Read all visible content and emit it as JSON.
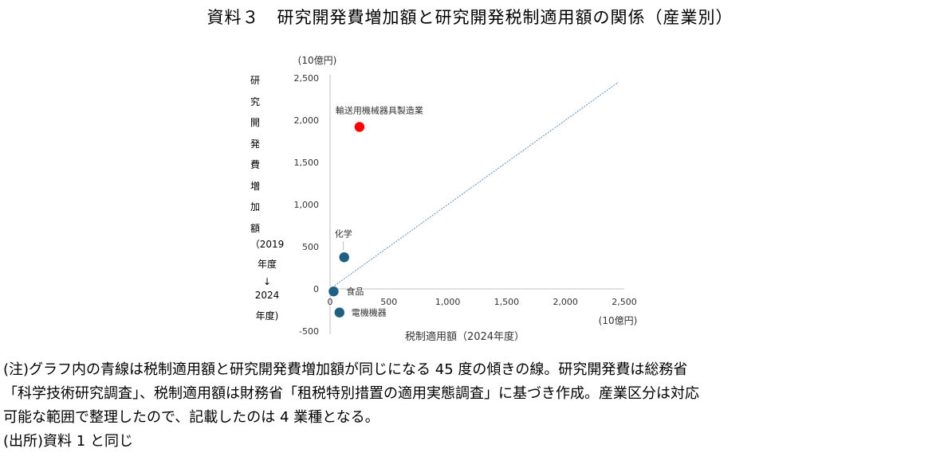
{
  "title": "資料３　研究開発費増加額と研究開発税制適用額の関係（産業別）",
  "chart_data": {
    "type": "scatter",
    "y_unit": "(10億円)",
    "x_unit": "(10億円)",
    "ylabel_lines": [
      "研",
      "究",
      "開",
      "発",
      "費",
      "増",
      "加",
      "額"
    ],
    "ylabel_period": [
      "（2019",
      "年度",
      "↓",
      "2024",
      "年度)"
    ],
    "xlabel": "税制適用額（2024年度）",
    "xlim": [
      0,
      2500
    ],
    "ylim": [
      -500,
      2500
    ],
    "x_ticks": [
      0,
      500,
      1000,
      1500,
      2000,
      2500
    ],
    "x_tick_labels": [
      "0",
      "500",
      "1,000",
      "1,500",
      "2,000",
      "2,500"
    ],
    "y_ticks": [
      -500,
      0,
      500,
      1000,
      1500,
      2000,
      2500
    ],
    "y_tick_labels": [
      "-500",
      "0",
      "500",
      "1,000",
      "1,500",
      "2,000",
      "2,500"
    ],
    "reference_line": {
      "x": [
        0,
        2450
      ],
      "y": [
        0,
        2450
      ],
      "color": "#5b8fc7"
    },
    "points": [
      {
        "label": "輸送用機械器具製造業",
        "x": 250,
        "y": 1920,
        "color": "#ff0000"
      },
      {
        "label": "化学",
        "x": 120,
        "y": 375,
        "color": "#1f5f7f"
      },
      {
        "label": "食品",
        "x": 30,
        "y": -30,
        "color": "#1f5f7f"
      },
      {
        "label": "電機機器",
        "x": 80,
        "y": -280,
        "color": "#1f5f7f"
      }
    ]
  },
  "notes": [
    "(注)グラフ内の青線は税制適用額と研究開発費増加額が同じになる 45 度の傾きの線。研究開発費は総務省",
    "「科学技術研究調査」、税制適用額は財務省「租税特別措置の適用実態調査」に基づき作成。産業区分は対応",
    "可能な範囲で整理したので、記載したのは 4 業種となる。",
    "(出所)資料 1 と同じ"
  ]
}
